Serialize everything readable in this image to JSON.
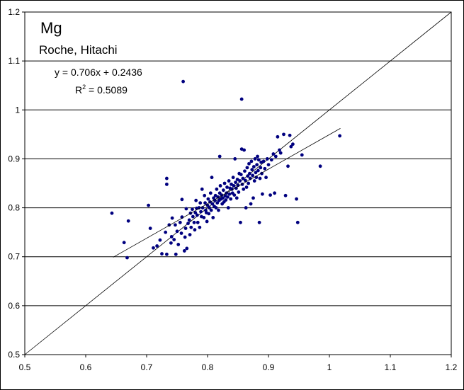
{
  "chart_data": {
    "type": "scatter",
    "title": "Mg",
    "subtitle": "Roche, Hitachi",
    "xlabel": "",
    "ylabel": "",
    "xlim": [
      0.5,
      1.2
    ],
    "ylim": [
      0.5,
      1.2
    ],
    "x_ticks": [
      "0.5",
      "0.6",
      "0.7",
      "0.8",
      "0.9",
      "1",
      "1.1",
      "1.2"
    ],
    "y_ticks": [
      "0.5",
      "0.6",
      "0.7",
      "0.8",
      "0.9",
      "1",
      "1.1",
      "1.2"
    ],
    "grid": "horizontal",
    "equation": "y = 0.706x + 0.2436",
    "r2_label": "R",
    "r2_exp": "2",
    "r2_value": " = 0.5089",
    "point_color": "#00007f",
    "identity_line": [
      [
        0.5,
        0.5
      ],
      [
        1.2,
        1.2
      ]
    ],
    "trend_line": {
      "slope": 0.706,
      "intercept": 0.2436,
      "x_range": [
        0.645,
        1.018
      ]
    },
    "points": [
      [
        0.643,
        0.789
      ],
      [
        0.663,
        0.729
      ],
      [
        0.668,
        0.698
      ],
      [
        0.67,
        0.773
      ],
      [
        0.703,
        0.805
      ],
      [
        0.706,
        0.758
      ],
      [
        0.711,
        0.718
      ],
      [
        0.717,
        0.722
      ],
      [
        0.722,
        0.734
      ],
      [
        0.725,
        0.706
      ],
      [
        0.731,
        0.75
      ],
      [
        0.733,
        0.705
      ],
      [
        0.733,
        0.848
      ],
      [
        0.733,
        0.86
      ],
      [
        0.737,
        0.765
      ],
      [
        0.74,
        0.728
      ],
      [
        0.741,
        0.741
      ],
      [
        0.742,
        0.779
      ],
      [
        0.745,
        0.735
      ],
      [
        0.747,
        0.765
      ],
      [
        0.748,
        0.705
      ],
      [
        0.75,
        0.752
      ],
      [
        0.752,
        0.725
      ],
      [
        0.755,
        0.77
      ],
      [
        0.757,
        0.748
      ],
      [
        0.758,
        0.817
      ],
      [
        0.758,
        0.781
      ],
      [
        0.76,
        1.058
      ],
      [
        0.762,
        0.712
      ],
      [
        0.763,
        0.74
      ],
      [
        0.764,
        0.758
      ],
      [
        0.765,
        0.798
      ],
      [
        0.766,
        0.717
      ],
      [
        0.768,
        0.768
      ],
      [
        0.77,
        0.775
      ],
      [
        0.771,
        0.745
      ],
      [
        0.772,
        0.789
      ],
      [
        0.773,
        0.76
      ],
      [
        0.775,
        0.797
      ],
      [
        0.776,
        0.782
      ],
      [
        0.778,
        0.77
      ],
      [
        0.779,
        0.755
      ],
      [
        0.78,
        0.79
      ],
      [
        0.781,
        0.815
      ],
      [
        0.782,
        0.799
      ],
      [
        0.783,
        0.785
      ],
      [
        0.784,
        0.77
      ],
      [
        0.786,
        0.8
      ],
      [
        0.787,
        0.76
      ],
      [
        0.788,
        0.81
      ],
      [
        0.789,
        0.792
      ],
      [
        0.79,
        0.782
      ],
      [
        0.791,
        0.838
      ],
      [
        0.792,
        0.8
      ],
      [
        0.794,
        0.78
      ],
      [
        0.795,
        0.825
      ],
      [
        0.796,
        0.81
      ],
      [
        0.797,
        0.795
      ],
      [
        0.798,
        0.79
      ],
      [
        0.799,
        0.772
      ],
      [
        0.8,
        0.805
      ],
      [
        0.801,
        0.818
      ],
      [
        0.802,
        0.788
      ],
      [
        0.803,
        0.8
      ],
      [
        0.804,
        0.812
      ],
      [
        0.805,
        0.83
      ],
      [
        0.806,
        0.795
      ],
      [
        0.807,
        0.862
      ],
      [
        0.808,
        0.808
      ],
      [
        0.809,
        0.78
      ],
      [
        0.81,
        0.82
      ],
      [
        0.811,
        0.803
      ],
      [
        0.812,
        0.815
      ],
      [
        0.813,
        0.825
      ],
      [
        0.814,
        0.8
      ],
      [
        0.815,
        0.838
      ],
      [
        0.816,
        0.81
      ],
      [
        0.817,
        0.822
      ],
      [
        0.818,
        0.795
      ],
      [
        0.819,
        0.815
      ],
      [
        0.82,
        0.83
      ],
      [
        0.82,
        0.905
      ],
      [
        0.821,
        0.845
      ],
      [
        0.822,
        0.818
      ],
      [
        0.823,
        0.826
      ],
      [
        0.824,
        0.808
      ],
      [
        0.825,
        0.82
      ],
      [
        0.826,
        0.836
      ],
      [
        0.827,
        0.812
      ],
      [
        0.828,
        0.85
      ],
      [
        0.829,
        0.824
      ],
      [
        0.83,
        0.816
      ],
      [
        0.831,
        0.83
      ],
      [
        0.832,
        0.842
      ],
      [
        0.833,
        0.822
      ],
      [
        0.834,
        0.8
      ],
      [
        0.835,
        0.855
      ],
      [
        0.836,
        0.828
      ],
      [
        0.837,
        0.84
      ],
      [
        0.838,
        0.818
      ],
      [
        0.839,
        0.848
      ],
      [
        0.84,
        0.838
      ],
      [
        0.841,
        0.83
      ],
      [
        0.842,
        0.862
      ],
      [
        0.843,
        0.845
      ],
      [
        0.844,
        0.826
      ],
      [
        0.845,
        0.9
      ],
      [
        0.846,
        0.852
      ],
      [
        0.847,
        0.84
      ],
      [
        0.848,
        0.82
      ],
      [
        0.849,
        0.858
      ],
      [
        0.85,
        0.846
      ],
      [
        0.851,
        0.832
      ],
      [
        0.852,
        0.87
      ],
      [
        0.853,
        0.855
      ],
      [
        0.854,
        0.77
      ],
      [
        0.855,
        0.868
      ],
      [
        0.856,
        1.022
      ],
      [
        0.856,
        0.92
      ],
      [
        0.857,
        0.848
      ],
      [
        0.858,
        0.86
      ],
      [
        0.859,
        0.838
      ],
      [
        0.86,
        0.918
      ],
      [
        0.861,
        0.875
      ],
      [
        0.862,
        0.856
      ],
      [
        0.863,
        0.8
      ],
      [
        0.864,
        0.842
      ],
      [
        0.865,
        0.882
      ],
      [
        0.866,
        0.865
      ],
      [
        0.867,
        0.85
      ],
      [
        0.868,
        0.89
      ],
      [
        0.869,
        0.87
      ],
      [
        0.87,
        0.86
      ],
      [
        0.871,
        0.808
      ],
      [
        0.872,
        0.895
      ],
      [
        0.873,
        0.878
      ],
      [
        0.874,
        0.866
      ],
      [
        0.875,
        0.82
      ],
      [
        0.876,
        0.884
      ],
      [
        0.877,
        0.855
      ],
      [
        0.878,
        0.9
      ],
      [
        0.879,
        0.872
      ],
      [
        0.88,
        0.862
      ],
      [
        0.881,
        0.888
      ],
      [
        0.882,
        0.905
      ],
      [
        0.883,
        0.876
      ],
      [
        0.884,
        0.898
      ],
      [
        0.885,
        0.77
      ],
      [
        0.886,
        0.86
      ],
      [
        0.887,
        0.882
      ],
      [
        0.888,
        0.893
      ],
      [
        0.889,
        0.87
      ],
      [
        0.89,
        0.828
      ],
      [
        0.892,
        0.895
      ],
      [
        0.894,
        0.88
      ],
      [
        0.896,
        0.862
      ],
      [
        0.898,
        0.9
      ],
      [
        0.9,
        0.888
      ],
      [
        0.903,
        0.826
      ],
      [
        0.905,
        0.898
      ],
      [
        0.908,
        0.91
      ],
      [
        0.91,
        0.83
      ],
      [
        0.912,
        0.905
      ],
      [
        0.915,
        0.945
      ],
      [
        0.918,
        0.918
      ],
      [
        0.92,
        0.912
      ],
      [
        0.925,
        0.95
      ],
      [
        0.928,
        0.825
      ],
      [
        0.932,
        0.885
      ],
      [
        0.935,
        0.948
      ],
      [
        0.937,
        0.925
      ],
      [
        0.94,
        0.93
      ],
      [
        0.946,
        0.818
      ],
      [
        0.948,
        0.77
      ],
      [
        0.955,
        0.908
      ],
      [
        0.985,
        0.885
      ],
      [
        1.017,
        0.947
      ]
    ]
  }
}
